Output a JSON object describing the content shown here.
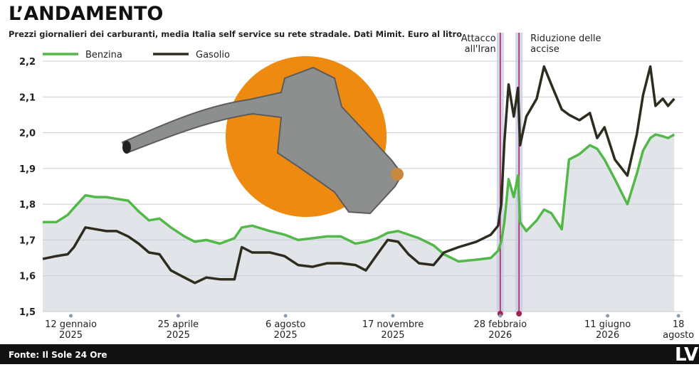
{
  "chart_data": {
    "type": "line",
    "title": "L’ANDAMENTO",
    "subtitle": "Prezzi giornalieri dei carburanti, media Italia self service su rete stradale. Dati Mimit. Euro al litro",
    "source": "Fonte: Il Sole 24 Ore",
    "logo": "LV",
    "x": [
      "2024-12-16",
      "2024-12-29",
      "2025-01-09",
      "2025-01-15",
      "2025-01-26",
      "2025-02-05",
      "2025-02-15",
      "2025-02-25",
      "2025-03-08",
      "2025-03-18",
      "2025-03-28",
      "2025-04-07",
      "2025-04-18",
      "2025-05-01",
      "2025-05-11",
      "2025-05-22",
      "2025-06-04",
      "2025-06-18",
      "2025-06-25",
      "2025-07-05",
      "2025-07-22",
      "2025-08-05",
      "2025-08-18",
      "2025-09-01",
      "2025-09-15",
      "2025-09-28",
      "2025-10-12",
      "2025-10-22",
      "2025-11-02",
      "2025-11-12",
      "2025-11-22",
      "2025-12-02",
      "2025-12-12",
      "2025-12-26",
      "2026-01-05",
      "2026-01-19",
      "2026-02-05",
      "2026-02-19",
      "2026-02-26",
      "2026-03-01",
      "2026-03-04",
      "2026-03-08",
      "2026-03-13",
      "2026-03-17",
      "2026-03-19",
      "2026-03-25",
      "2026-04-04",
      "2026-04-11",
      "2026-04-18",
      "2026-04-28",
      "2026-05-05",
      "2026-05-15",
      "2026-05-25",
      "2026-06-01",
      "2026-06-08",
      "2026-06-18",
      "2026-06-30",
      "2026-07-09",
      "2026-07-15",
      "2026-07-22",
      "2026-07-27",
      "2026-08-03",
      "2026-08-08",
      "2026-08-14"
    ],
    "series": [
      {
        "name": "Benzina",
        "color": "#52b948",
        "area_color": "#e1e4e8",
        "values": [
          1.75,
          1.75,
          1.77,
          1.79,
          1.825,
          1.82,
          1.82,
          1.815,
          1.81,
          1.78,
          1.755,
          1.76,
          1.735,
          1.71,
          1.695,
          1.7,
          1.69,
          1.705,
          1.735,
          1.74,
          1.725,
          1.715,
          1.7,
          1.705,
          1.71,
          1.71,
          1.69,
          1.695,
          1.705,
          1.72,
          1.725,
          1.715,
          1.705,
          1.685,
          1.66,
          1.64,
          1.645,
          1.65,
          1.67,
          1.695,
          1.75,
          1.87,
          1.82,
          1.88,
          1.75,
          1.725,
          1.755,
          1.785,
          1.775,
          1.73,
          1.925,
          1.94,
          1.965,
          1.955,
          1.925,
          1.87,
          1.8,
          1.885,
          1.95,
          1.985,
          1.995,
          1.99,
          1.985,
          1.995
        ]
      },
      {
        "name": "Gasolio",
        "color": "#2e2b1f",
        "values": [
          1.647,
          1.655,
          1.66,
          1.68,
          1.735,
          1.73,
          1.725,
          1.725,
          1.71,
          1.69,
          1.665,
          1.66,
          1.615,
          1.595,
          1.58,
          1.595,
          1.59,
          1.59,
          1.68,
          1.665,
          1.665,
          1.655,
          1.63,
          1.625,
          1.635,
          1.635,
          1.63,
          1.615,
          1.66,
          1.7,
          1.695,
          1.66,
          1.635,
          1.63,
          1.665,
          1.68,
          1.695,
          1.715,
          1.74,
          1.8,
          1.975,
          2.135,
          2.045,
          2.125,
          1.965,
          2.045,
          2.095,
          2.185,
          2.135,
          2.065,
          2.05,
          2.035,
          2.055,
          1.985,
          2.015,
          1.925,
          1.88,
          1.995,
          2.105,
          2.185,
          2.075,
          2.095,
          2.075,
          2.095
        ]
      }
    ],
    "xlim": [
      "2024-12-16",
      "2026-08-22"
    ],
    "xticks": [
      {
        "value": "2025-01-12",
        "label": "12 gennaio 2025"
      },
      {
        "value": "2025-04-25",
        "label": "25 aprile 2025"
      },
      {
        "value": "2025-08-06",
        "label": "6 agosto 2025"
      },
      {
        "value": "2025-11-17",
        "label": "17 novembre 2025"
      },
      {
        "value": "2026-02-28",
        "label": "28 febbraio 2026"
      },
      {
        "value": "2026-06-11",
        "label": "11 giugno 2026"
      },
      {
        "value": "2026-08-18",
        "label": "18 agosto"
      }
    ],
    "ylim": [
      1.5,
      2.2
    ],
    "yticks": [
      {
        "value": 1.5,
        "label": "1,5"
      },
      {
        "value": 1.6,
        "label": "1,6"
      },
      {
        "value": 1.7,
        "label": "1,7"
      },
      {
        "value": 1.8,
        "label": "1,8"
      },
      {
        "value": 1.9,
        "label": "1,9"
      },
      {
        "value": 2.0,
        "label": "2,0"
      },
      {
        "value": 2.1,
        "label": "2,1"
      },
      {
        "value": 2.2,
        "label": "2,2"
      }
    ],
    "grid": true,
    "annotations": [
      {
        "x": "2026-02-28",
        "lines": [
          "Attacco",
          "all'Iran"
        ],
        "color": "#a3244b"
      },
      {
        "x": "2026-03-18",
        "lines": [
          "Riduzione delle",
          "accise"
        ],
        "color": "#a3244b"
      }
    ]
  }
}
